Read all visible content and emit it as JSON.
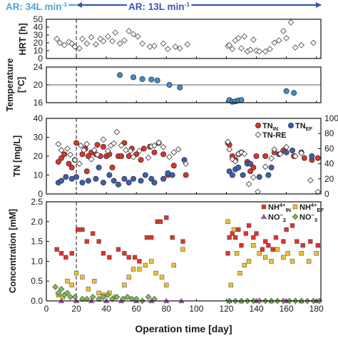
{
  "chart_data": [
    {
      "type": "line",
      "series": [
        {
          "name": "AR: 34L min-1",
          "x": [
            0,
            20
          ],
          "color": "#4aa3d9"
        },
        {
          "name": "AR: 13L min-1",
          "x": [
            20,
            183
          ],
          "color": "#3a55b5"
        }
      ]
    },
    {
      "type": "scatter",
      "ylabel": "HRT [h]",
      "xlim": [
        0,
        183
      ],
      "ylim": [
        0,
        50
      ],
      "yticks": [
        "0",
        "10",
        "20",
        "30",
        "40",
        "50"
      ],
      "series": [
        {
          "name": "",
          "marker": "diamond",
          "x": [
            7,
            9,
            12,
            15,
            17,
            19,
            22,
            24,
            27,
            30,
            33,
            36,
            38,
            41,
            44,
            46,
            49,
            52,
            55,
            58,
            61,
            64,
            69,
            72,
            78,
            81,
            86,
            89,
            94,
            121,
            122,
            124,
            126,
            128,
            130,
            132,
            134,
            136,
            138,
            140,
            142,
            146,
            149,
            152,
            155,
            158,
            160,
            163,
            166,
            170,
            178
          ],
          "y": [
            25,
            20,
            17,
            21,
            19,
            15,
            13,
            25,
            19,
            27,
            18,
            25,
            22,
            28,
            22,
            33,
            19,
            23,
            35,
            31,
            28,
            19,
            15,
            16,
            19,
            12,
            15,
            13,
            18,
            16,
            17,
            12,
            23,
            26,
            13,
            28,
            9,
            11,
            24,
            10,
            9,
            9,
            12,
            20,
            23,
            35,
            26,
            46,
            14,
            17,
            20
          ]
        }
      ]
    },
    {
      "type": "scatter",
      "ylabel": "Temperature [°C]",
      "xlim": [
        0,
        183
      ],
      "ylim": [
        16,
        24
      ],
      "yticks": [
        "16",
        "20",
        "24"
      ],
      "series": [
        {
          "name": "",
          "marker": "circle",
          "color": "#3d8fd1",
          "x": [
            49,
            58,
            64,
            70,
            74,
            82,
            89,
            122,
            124,
            126,
            128,
            130,
            160,
            165
          ],
          "y": [
            22.2,
            21.7,
            21.3,
            21.2,
            21.0,
            20.0,
            19.4,
            16.6,
            16.2,
            16.3,
            16.5,
            16.6,
            18.6,
            18.2
          ]
        }
      ]
    },
    {
      "type": "scatter",
      "ylabel": "TN [mg/L]",
      "xlim": [
        0,
        183
      ],
      "ylim": [
        0,
        40
      ],
      "y2lim": [
        0,
        100
      ],
      "yticks": [
        "0",
        "10",
        "20",
        "30",
        "40"
      ],
      "y2ticks": [
        "0",
        "20",
        "40",
        "60",
        "80",
        "100"
      ],
      "series": [
        {
          "name": "TN_IN",
          "label_main": "TN",
          "label_sub": "IN",
          "marker": "circle",
          "color": "#e0322a",
          "x": [
            8,
            10,
            12,
            15,
            17,
            19,
            20,
            24,
            26,
            27,
            28,
            30,
            33,
            34,
            36,
            38,
            40,
            42,
            44,
            48,
            50,
            52,
            55,
            57,
            60,
            63,
            65,
            69,
            72,
            75,
            78,
            81,
            85,
            93,
            121,
            122,
            124,
            126,
            128,
            130,
            134,
            136,
            138,
            140,
            146,
            152,
            158,
            165,
            172,
            177,
            181
          ],
          "y": [
            17,
            19,
            21,
            16,
            14,
            18,
            27,
            21,
            24,
            12,
            20,
            22,
            21,
            26,
            20,
            25,
            20,
            21,
            14,
            20,
            20,
            27,
            20,
            24,
            21,
            18,
            24,
            25,
            22,
            27,
            21,
            10,
            15,
            10,
            27,
            26,
            20,
            18,
            21,
            22,
            17,
            12,
            14,
            20,
            20,
            22,
            23,
            20,
            19,
            18,
            19
          ]
        },
        {
          "name": "TN_EF",
          "label_main": "TN",
          "label_sub": "EF",
          "marker": "circle",
          "color": "#3a5fb8",
          "x": [
            8,
            10,
            13,
            17,
            20,
            24,
            28,
            33,
            35,
            38,
            42,
            45,
            48,
            52,
            55,
            58,
            63,
            66,
            70,
            72,
            78,
            81,
            84,
            92,
            122,
            124,
            126,
            128,
            131,
            134,
            136,
            142,
            148,
            150,
            155,
            160,
            164,
            170,
            177
          ],
          "y": [
            6,
            7,
            9,
            8,
            9,
            6,
            7,
            8,
            14,
            6,
            10,
            7,
            5,
            8,
            6,
            8,
            7,
            10,
            8,
            6,
            8,
            11,
            10,
            18,
            12,
            10,
            13,
            14,
            10,
            16,
            16,
            9,
            10,
            14,
            21,
            22,
            23,
            22,
            20
          ]
        },
        {
          "name": "TN-RE",
          "marker": "diamond",
          "color": "#ffffff",
          "axis": "right",
          "x": [
            8,
            10,
            14,
            16,
            19,
            22,
            23,
            25,
            27,
            30,
            32,
            34,
            38,
            41,
            43,
            45,
            47,
            50,
            53,
            56,
            58,
            62,
            68,
            70,
            72,
            75,
            78,
            82,
            85,
            88,
            93,
            121,
            122,
            124,
            126,
            128,
            130,
            132,
            135,
            138,
            141,
            146,
            150,
            152,
            156,
            160,
            166,
            170,
            176,
            181
          ],
          "y": [
            66,
            58,
            60,
            52,
            45,
            40,
            64,
            58,
            66,
            46,
            58,
            52,
            72,
            57,
            64,
            67,
            82,
            64,
            58,
            57,
            49,
            57,
            48,
            63,
            64,
            68,
            62,
            49,
            55,
            59,
            40,
            69,
            59,
            46,
            43,
            53,
            55,
            53,
            13,
            22,
            3,
            36,
            47,
            59,
            53,
            62,
            50,
            54,
            18,
            3
          ]
        }
      ]
    },
    {
      "type": "scatter",
      "xlabel": "Operation time [day]",
      "ylabel": "Concentration [mM]",
      "xlim": [
        0,
        183
      ],
      "ylim": [
        0,
        2.5
      ],
      "xticks": [
        "0",
        "20",
        "40",
        "60",
        "80",
        "100",
        "120",
        "140",
        "160",
        "180"
      ],
      "yticks": [
        "0.0",
        "0.5",
        "1.0",
        "1.5",
        "2.0",
        "2.5"
      ],
      "series": [
        {
          "name": "NH4+_IN",
          "label_main": "NH",
          "label_sup": "4+",
          "label_sub": "IN",
          "marker": "square",
          "color": "#e0322a",
          "x": [
            7,
            10,
            13,
            17,
            21,
            24,
            27,
            31,
            35,
            38,
            42,
            48,
            52,
            55,
            59,
            62,
            67,
            70,
            74,
            76,
            80,
            84,
            91,
            121,
            122,
            124,
            126,
            128,
            130,
            133,
            135,
            138,
            140,
            144,
            146,
            148,
            151,
            153,
            158,
            160,
            164,
            167,
            171,
            176,
            181
          ],
          "y": [
            1.3,
            1.2,
            1.1,
            1.2,
            1.8,
            1.8,
            1.5,
            1.7,
            1.5,
            1.2,
            1.1,
            1.3,
            1.2,
            1.1,
            1.1,
            1.0,
            1.6,
            1.6,
            2.0,
            2.0,
            2.1,
            1.6,
            1.5,
            1.2,
            1.6,
            1.7,
            1.6,
            1.8,
            1.4,
            1.7,
            1.9,
            1.6,
            1.7,
            1.3,
            1.5,
            1.4,
            1.3,
            1.6,
            1.5,
            1.8,
            1.9,
            1.5,
            1.4,
            1.5,
            1.4
          ]
        },
        {
          "name": "NH4+_EF",
          "label_main": "NH",
          "label_sup": "4+",
          "label_sub": "EF",
          "marker": "square",
          "color": "#f2c030",
          "x": [
            8,
            11,
            14,
            17,
            20,
            24,
            28,
            32,
            35,
            38,
            42,
            46,
            52,
            55,
            58,
            62,
            66,
            70,
            73,
            77,
            80,
            85,
            91,
            121,
            123,
            125,
            127,
            129,
            132,
            135,
            138,
            142,
            146,
            150,
            154,
            158,
            161,
            164,
            170,
            175,
            180
          ],
          "y": [
            0.15,
            0.1,
            0.5,
            0.4,
            0.7,
            0.6,
            0.3,
            0.5,
            0.2,
            0.15,
            0.2,
            0.1,
            0.4,
            0.6,
            0.8,
            0.8,
            0.9,
            1.0,
            0.7,
            0.6,
            0.4,
            0.9,
            1.3,
            2.0,
            0.4,
            1.8,
            1.2,
            0.7,
            0.9,
            1.0,
            1.4,
            1.2,
            1.1,
            1.0,
            1.3,
            1.1,
            1.2,
            1.0,
            1.2,
            1.0,
            1.2
          ]
        },
        {
          "name": "NO2-",
          "label_main": "NO",
          "label_sub": "2",
          "label_sup": "−",
          "marker": "triangle",
          "color": "#b14fc8",
          "x": [
            10,
            20,
            30,
            40,
            50,
            60,
            70,
            80,
            90,
            122,
            130,
            140,
            150,
            160,
            170,
            180
          ],
          "y": [
            0,
            0,
            0,
            0,
            0,
            0,
            0,
            0,
            0,
            0,
            0,
            0,
            0,
            0,
            0,
            0
          ]
        },
        {
          "name": "NO3-",
          "label_main": "NO",
          "label_sub": "3",
          "label_sup": "−",
          "marker": "diamond",
          "color": "#7cc243",
          "x": [
            6,
            8,
            10,
            12,
            14,
            16,
            19,
            24,
            27,
            31,
            35,
            38,
            41,
            44,
            47,
            51,
            54,
            57,
            60,
            64,
            68,
            72,
            122,
            126,
            130,
            134,
            138,
            142,
            146,
            150,
            154,
            158,
            162,
            166,
            170,
            174,
            178,
            182
          ],
          "y": [
            0.35,
            0.2,
            0.3,
            0.15,
            0.2,
            0.1,
            0.1,
            0.05,
            0.05,
            0.1,
            0.05,
            0.1,
            0.15,
            0.05,
            0.1,
            0.05,
            0.1,
            0.05,
            0.05,
            0.0,
            0.1,
            0.05,
            0.0,
            0.0,
            0.0,
            0.0,
            0.0,
            0.0,
            0.0,
            0.0,
            0.0,
            0.0,
            0.0,
            0.0,
            0.0,
            0.0,
            0.0,
            0.0
          ]
        }
      ]
    }
  ]
}
